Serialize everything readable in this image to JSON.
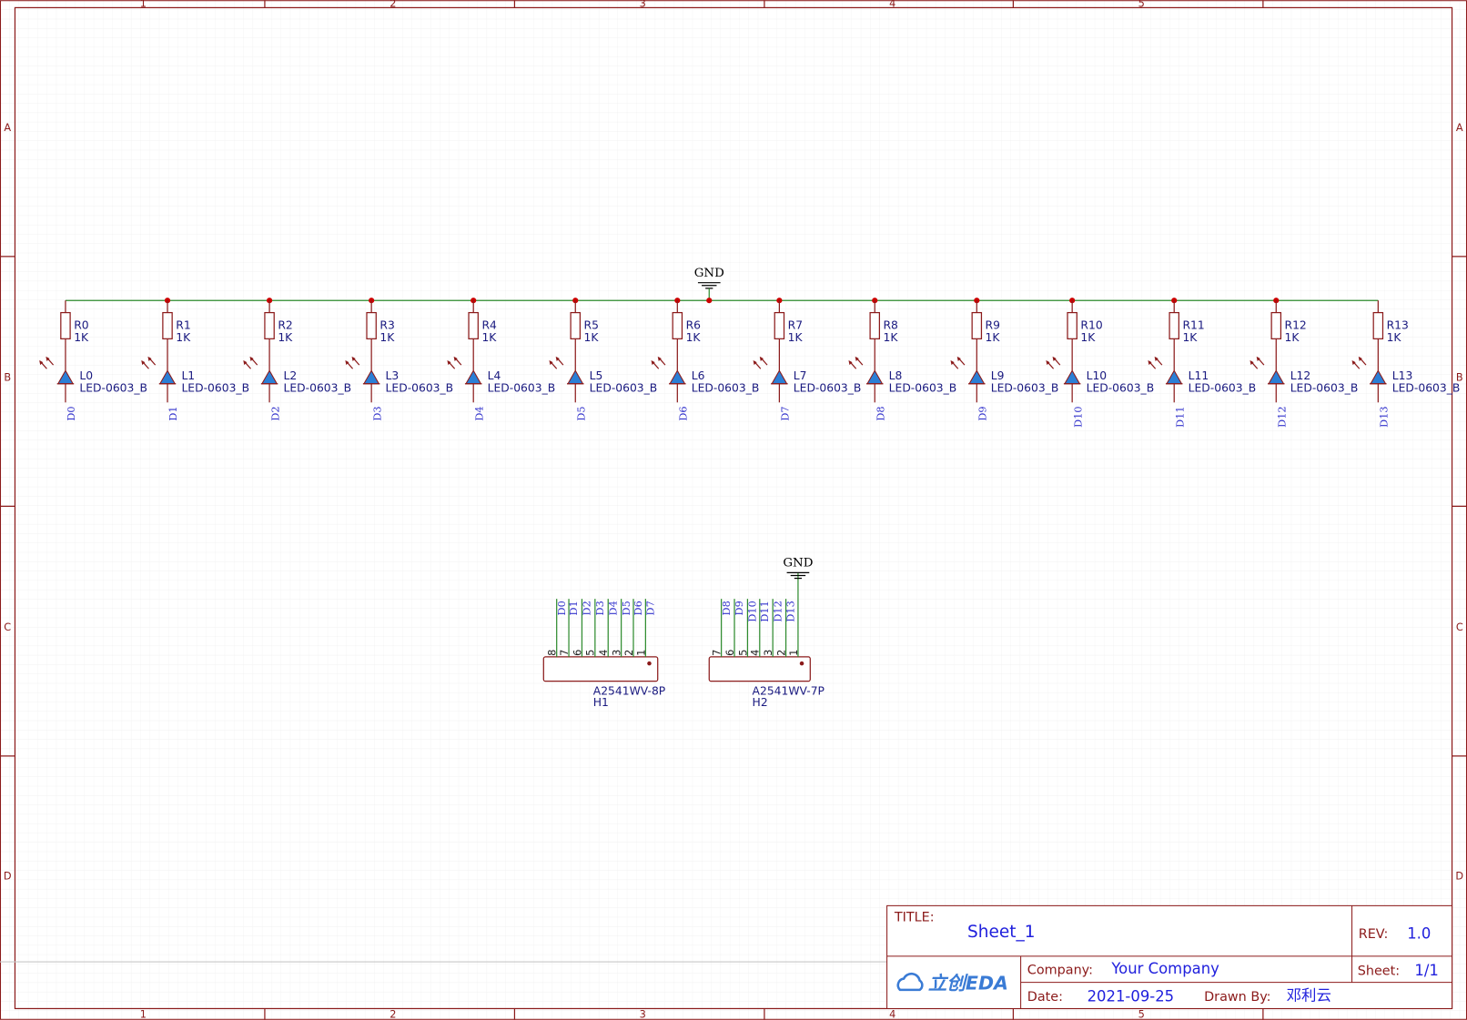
{
  "sheet": {
    "columns": [
      "1",
      "2",
      "3",
      "4",
      "5"
    ],
    "rows": [
      "A",
      "B",
      "C",
      "D"
    ]
  },
  "power": {
    "gnd_top": "GND",
    "gnd_connector": "GND"
  },
  "leds": [
    {
      "resistor": "R0",
      "resistance": "1K",
      "led": "L0",
      "package": "LED-0603_B",
      "net": "D0"
    },
    {
      "resistor": "R1",
      "resistance": "1K",
      "led": "L1",
      "package": "LED-0603_B",
      "net": "D1"
    },
    {
      "resistor": "R2",
      "resistance": "1K",
      "led": "L2",
      "package": "LED-0603_B",
      "net": "D2"
    },
    {
      "resistor": "R3",
      "resistance": "1K",
      "led": "L3",
      "package": "LED-0603_B",
      "net": "D3"
    },
    {
      "resistor": "R4",
      "resistance": "1K",
      "led": "L4",
      "package": "LED-0603_B",
      "net": "D4"
    },
    {
      "resistor": "R5",
      "resistance": "1K",
      "led": "L5",
      "package": "LED-0603_B",
      "net": "D5"
    },
    {
      "resistor": "R6",
      "resistance": "1K",
      "led": "L6",
      "package": "LED-0603_B",
      "net": "D6"
    },
    {
      "resistor": "R7",
      "resistance": "1K",
      "led": "L7",
      "package": "LED-0603_B",
      "net": "D7"
    },
    {
      "resistor": "R8",
      "resistance": "1K",
      "led": "L8",
      "package": "LED-0603_B",
      "net": "D8"
    },
    {
      "resistor": "R9",
      "resistance": "1K",
      "led": "L9",
      "package": "LED-0603_B",
      "net": "D9"
    },
    {
      "resistor": "R10",
      "resistance": "1K",
      "led": "L10",
      "package": "LED-0603_B",
      "net": "D10"
    },
    {
      "resistor": "R11",
      "resistance": "1K",
      "led": "L11",
      "package": "LED-0603_B",
      "net": "D11"
    },
    {
      "resistor": "R12",
      "resistance": "1K",
      "led": "L12",
      "package": "LED-0603_B",
      "net": "D12"
    },
    {
      "resistor": "R13",
      "resistance": "1K",
      "led": "L13",
      "package": "LED-0603_B",
      "net": "D13"
    }
  ],
  "connectors": [
    {
      "part": "A2541WV-8P",
      "designator": "H1",
      "pins": [
        "8",
        "7",
        "6",
        "5",
        "4",
        "3",
        "2",
        "1"
      ],
      "nets": [
        "D0",
        "D1",
        "D2",
        "D3",
        "D4",
        "D5",
        "D6",
        "D7"
      ]
    },
    {
      "part": "A2541WV-7P",
      "designator": "H2",
      "pins": [
        "7",
        "6",
        "5",
        "4",
        "3",
        "2",
        "1"
      ],
      "nets": [
        "D8",
        "D9",
        "D10",
        "D11",
        "D12",
        "D13"
      ]
    }
  ],
  "title_block": {
    "title_label": "TITLE:",
    "title": "Sheet_1",
    "rev_label": "REV:",
    "rev": "1.0",
    "company_label": "Company:",
    "company": "Your Company",
    "sheet_label": "Sheet:",
    "sheet": "1/1",
    "date_label": "Date:",
    "date": "2021-09-25",
    "drawn_by_label": "Drawn By:",
    "drawn_by": "邓利云",
    "logo": "立创EDA"
  }
}
